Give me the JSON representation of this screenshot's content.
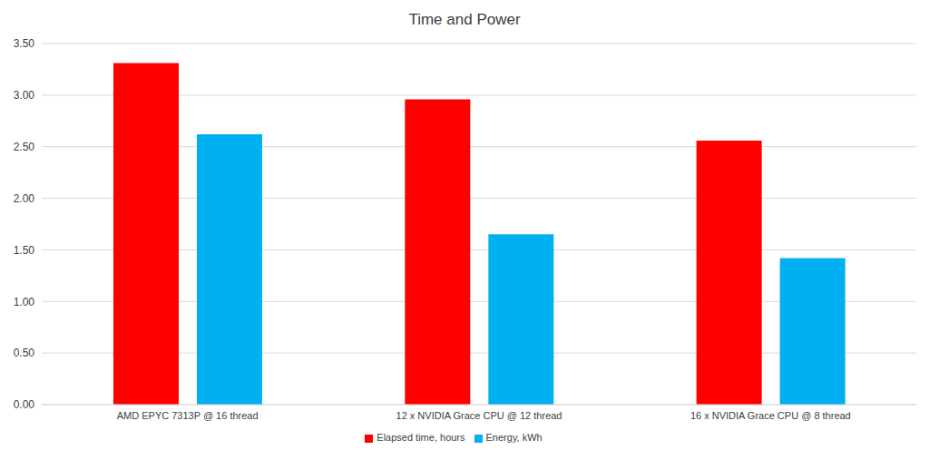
{
  "chart_data": {
    "type": "bar",
    "title": "Time and Power",
    "categories": [
      "AMD EPYC 7313P @ 16 thread",
      "12 x NVIDIA Grace CPU @ 12 thread",
      "16 x NVIDIA Grace CPU @ 8 thread"
    ],
    "series": [
      {
        "name": "Elapsed time, hours",
        "color": "#ff0000",
        "values": [
          3.31,
          2.96,
          2.56
        ]
      },
      {
        "name": "Energy, kWh",
        "color": "#00b0f0",
        "values": [
          2.62,
          1.65,
          1.42
        ]
      }
    ],
    "ylim": [
      0,
      3.5
    ],
    "yticks": [
      {
        "value": 0,
        "label": "0.00"
      },
      {
        "value": 0.5,
        "label": "0.50"
      },
      {
        "value": 1,
        "label": "1.00"
      },
      {
        "value": 1.5,
        "label": "1.50"
      },
      {
        "value": 2,
        "label": "2.00"
      },
      {
        "value": 2.5,
        "label": "2.50"
      },
      {
        "value": 3,
        "label": "3.00"
      },
      {
        "value": 3.5,
        "label": "3.50"
      }
    ],
    "grid": true,
    "legend": "bottom"
  }
}
